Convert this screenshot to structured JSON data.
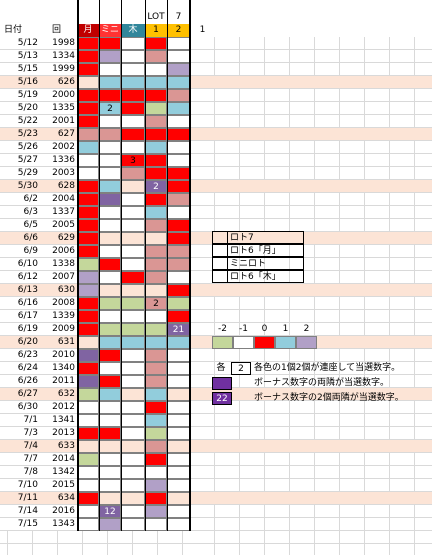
{
  "header": {
    "date": "日付",
    "number": "回",
    "mon": "月",
    "mini": "ミニ",
    "thu": "木",
    "lot_top": "LOT",
    "lot": "1",
    "seven_top": "7",
    "seven": "2",
    "extra": "1"
  },
  "header_colors": [
    "#c00000",
    "#ff3333",
    "#31869b",
    "#ffc000",
    "#ffc000"
  ],
  "rows": [
    {
      "date": "5/12",
      "number": "1998",
      "cells": [
        "#ff0000",
        "#ff0000",
        "#ffffff",
        "#ff0000",
        "#ffffff"
      ]
    },
    {
      "date": "5/13",
      "number": "1334",
      "cells": [
        "#ff0000",
        "#b1a0c7",
        "#ffffff",
        "#da9694",
        "#ffffff"
      ]
    },
    {
      "date": "5/15",
      "number": "1999",
      "cells": [
        "#ff0000",
        "#ffffff",
        "#ffffff",
        "#ffffff",
        "#b1a0c7"
      ]
    },
    {
      "date": "5/16",
      "number": "626",
      "mini": true,
      "cells": [
        null,
        "#92cddc",
        "#92cddc",
        "#92cddc",
        "#92cddc"
      ]
    },
    {
      "date": "5/19",
      "number": "2000",
      "cells": [
        "#ff0000",
        "#ff0000",
        "#ff0000",
        "#ff0000",
        "#da9694"
      ]
    },
    {
      "date": "5/20",
      "number": "1335",
      "cells": [
        "#ff0000",
        "#92cddc",
        "#ff0000",
        "#c4d79b",
        "#92cddc"
      ],
      "texts": [
        null,
        "2",
        null,
        null,
        null
      ]
    },
    {
      "date": "5/22",
      "number": "2001",
      "cells": [
        "#ff0000",
        "#ffffff",
        "#ffffff",
        "#da9694",
        "#ffffff"
      ]
    },
    {
      "date": "5/23",
      "number": "627",
      "mini": true,
      "cells": [
        "#da9694",
        "#da9694",
        "#ff0000",
        "#ff0000",
        "#ff0000"
      ]
    },
    {
      "date": "5/26",
      "number": "2002",
      "cells": [
        "#92cddc",
        "#ffffff",
        "#ffffff",
        "#92cddc",
        "#ffffff"
      ]
    },
    {
      "date": "5/27",
      "number": "1336",
      "cells": [
        "#ffffff",
        "#ffffff",
        "#ff0000",
        "#ff0000",
        "#ffffff"
      ],
      "texts": [
        null,
        null,
        "3",
        null,
        null
      ]
    },
    {
      "date": "5/29",
      "number": "2003",
      "cells": [
        "#ffffff",
        "#ffffff",
        "#da9694",
        "#ff0000",
        "#ff0000"
      ]
    },
    {
      "date": "5/30",
      "number": "628",
      "mini": true,
      "cells": [
        "#ff0000",
        "#92cddc",
        null,
        "#8064a2",
        "#ff0000"
      ],
      "texts": [
        null,
        null,
        null,
        "2",
        null
      ]
    },
    {
      "date": "6/2",
      "number": "2004",
      "cells": [
        "#ff0000",
        "#8064a2",
        "#ffffff",
        "#ff0000",
        "#da9694"
      ]
    },
    {
      "date": "6/3",
      "number": "1337",
      "cells": [
        "#ff0000",
        "#ffffff",
        "#ffffff",
        "#92cddc",
        "#ffffff"
      ]
    },
    {
      "date": "6/5",
      "number": "2005",
      "cells": [
        "#ff0000",
        "#ffffff",
        "#ffffff",
        "#da9694",
        "#ff0000"
      ]
    },
    {
      "date": "6/6",
      "number": "629",
      "mini": true,
      "cells": [
        "#ff0000",
        null,
        null,
        null,
        "#ff0000"
      ]
    },
    {
      "date": "6/9",
      "number": "2006",
      "cells": [
        "#ff0000",
        "#ffffff",
        "#ffffff",
        "#da9694",
        "#da9694"
      ]
    },
    {
      "date": "6/10",
      "number": "1338",
      "cells": [
        "#c4d79b",
        "#ff0000",
        "#ffffff",
        "#da9694",
        "#da9694"
      ]
    },
    {
      "date": "6/12",
      "number": "2007",
      "cells": [
        "#b1a0c7",
        "#ffffff",
        "#ff0000",
        "#da9694",
        "#ffffff"
      ]
    },
    {
      "date": "6/13",
      "number": "630",
      "mini": true,
      "cells": [
        "#b1a0c7",
        null,
        null,
        null,
        "#ff0000"
      ]
    },
    {
      "date": "6/16",
      "number": "2008",
      "cells": [
        "#ff0000",
        "#c4d79b",
        "#c4d79b",
        "#da9694",
        "#c4d79b"
      ],
      "texts": [
        null,
        null,
        null,
        "2",
        null
      ]
    },
    {
      "date": "6/17",
      "number": "1339",
      "cells": [
        "#ff0000",
        "#ffffff",
        "#ffffff",
        "#ffffff",
        "#ff0000"
      ]
    },
    {
      "date": "6/19",
      "number": "2009",
      "cells": [
        "#ff0000",
        "#c4d79b",
        "#c4d79b",
        "#c4d79b",
        "#8064a2"
      ],
      "texts": [
        null,
        null,
        null,
        null,
        "21"
      ]
    },
    {
      "date": "6/20",
      "number": "631",
      "mini": true,
      "cells": [
        null,
        "#92cddc",
        "#92cddc",
        "#92cddc",
        "#92cddc"
      ]
    },
    {
      "date": "6/23",
      "number": "2010",
      "cells": [
        "#8064a2",
        "#ff0000",
        "#ffffff",
        "#da9694",
        "#ffffff"
      ]
    },
    {
      "date": "6/24",
      "number": "1340",
      "cells": [
        "#ff0000",
        "#ffffff",
        "#ffffff",
        "#da9694",
        "#ffffff"
      ]
    },
    {
      "date": "6/26",
      "number": "2011",
      "cells": [
        "#8064a2",
        "#ff0000",
        "#ffffff",
        "#da9694",
        "#ffffff"
      ]
    },
    {
      "date": "6/27",
      "number": "632",
      "mini": true,
      "cells": [
        "#c4d79b",
        "#92cddc",
        null,
        "#92cddc",
        null
      ]
    },
    {
      "date": "6/30",
      "number": "2012",
      "cells": [
        "#ffffff",
        "#ffffff",
        "#ffffff",
        "#ff0000",
        "#ffffff"
      ]
    },
    {
      "date": "7/1",
      "number": "1341",
      "cells": [
        "#ffffff",
        "#ffffff",
        "#ffffff",
        "#92cddc",
        "#ffffff"
      ]
    },
    {
      "date": "7/3",
      "number": "2013",
      "cells": [
        "#ff0000",
        "#ff0000",
        "#ffffff",
        "#c4d79b",
        "#ffffff"
      ]
    },
    {
      "date": "7/4",
      "number": "633",
      "mini": true,
      "cells": [
        null,
        null,
        null,
        "#da9694",
        null
      ]
    },
    {
      "date": "7/7",
      "number": "2014",
      "cells": [
        "#c4d79b",
        "#ffffff",
        "#ffffff",
        "#ff0000",
        "#ffffff"
      ]
    },
    {
      "date": "7/8",
      "number": "1342",
      "cells": [
        "#ffffff",
        "#ffffff",
        "#ffffff",
        "#ffffff",
        "#ffffff"
      ]
    },
    {
      "date": "7/10",
      "number": "2015",
      "cells": [
        "#ffffff",
        "#ffffff",
        "#ffffff",
        "#b1a0c7",
        "#ffffff"
      ]
    },
    {
      "date": "7/11",
      "number": "634",
      "mini": true,
      "cells": [
        "#ff0000",
        null,
        null,
        "#ff0000",
        null
      ]
    },
    {
      "date": "7/14",
      "number": "2016",
      "cells": [
        "#ffffff",
        "#8064a2",
        "#ffffff",
        "#b1a0c7",
        "#ffffff"
      ],
      "texts": [
        null,
        "12",
        null,
        null,
        null
      ]
    },
    {
      "date": "7/15",
      "number": "1343",
      "cells": [
        "#ffffff",
        "#b1a0c7",
        "#ffffff",
        "#ffffff",
        "#ffffff"
      ]
    }
  ],
  "mini_row_color": "#fce4d6",
  "legend": [
    {
      "label": "ロト7",
      "color": "#fce4d6"
    },
    {
      "label": "ロト6「月」",
      "color": "#ffffff"
    },
    {
      "label": "ミニロト",
      "color": "#ffffff"
    },
    {
      "label": "ロト6「木」",
      "color": "#ffffff"
    }
  ],
  "scale": [
    {
      "label": "-2",
      "color": "#c4d79b"
    },
    {
      "label": "-1",
      "color": "#ffffff"
    },
    {
      "label": "0",
      "color": "#ff0000"
    },
    {
      "label": "1",
      "color": "#92cddc"
    },
    {
      "label": "2",
      "color": "#b1a0c7"
    }
  ],
  "notes": [
    {
      "label": "各",
      "box": "2",
      "box_color": "#ffffff",
      "text": "各色の1個2個が連座して当選数字。"
    },
    {
      "box_color": "#7030a0",
      "text": "ボーナス数字の両隣が当選数字。"
    },
    {
      "box": "22",
      "box_color": "#7030a0",
      "text": "ボーナス数字の2個両隣が当選数字。"
    }
  ]
}
